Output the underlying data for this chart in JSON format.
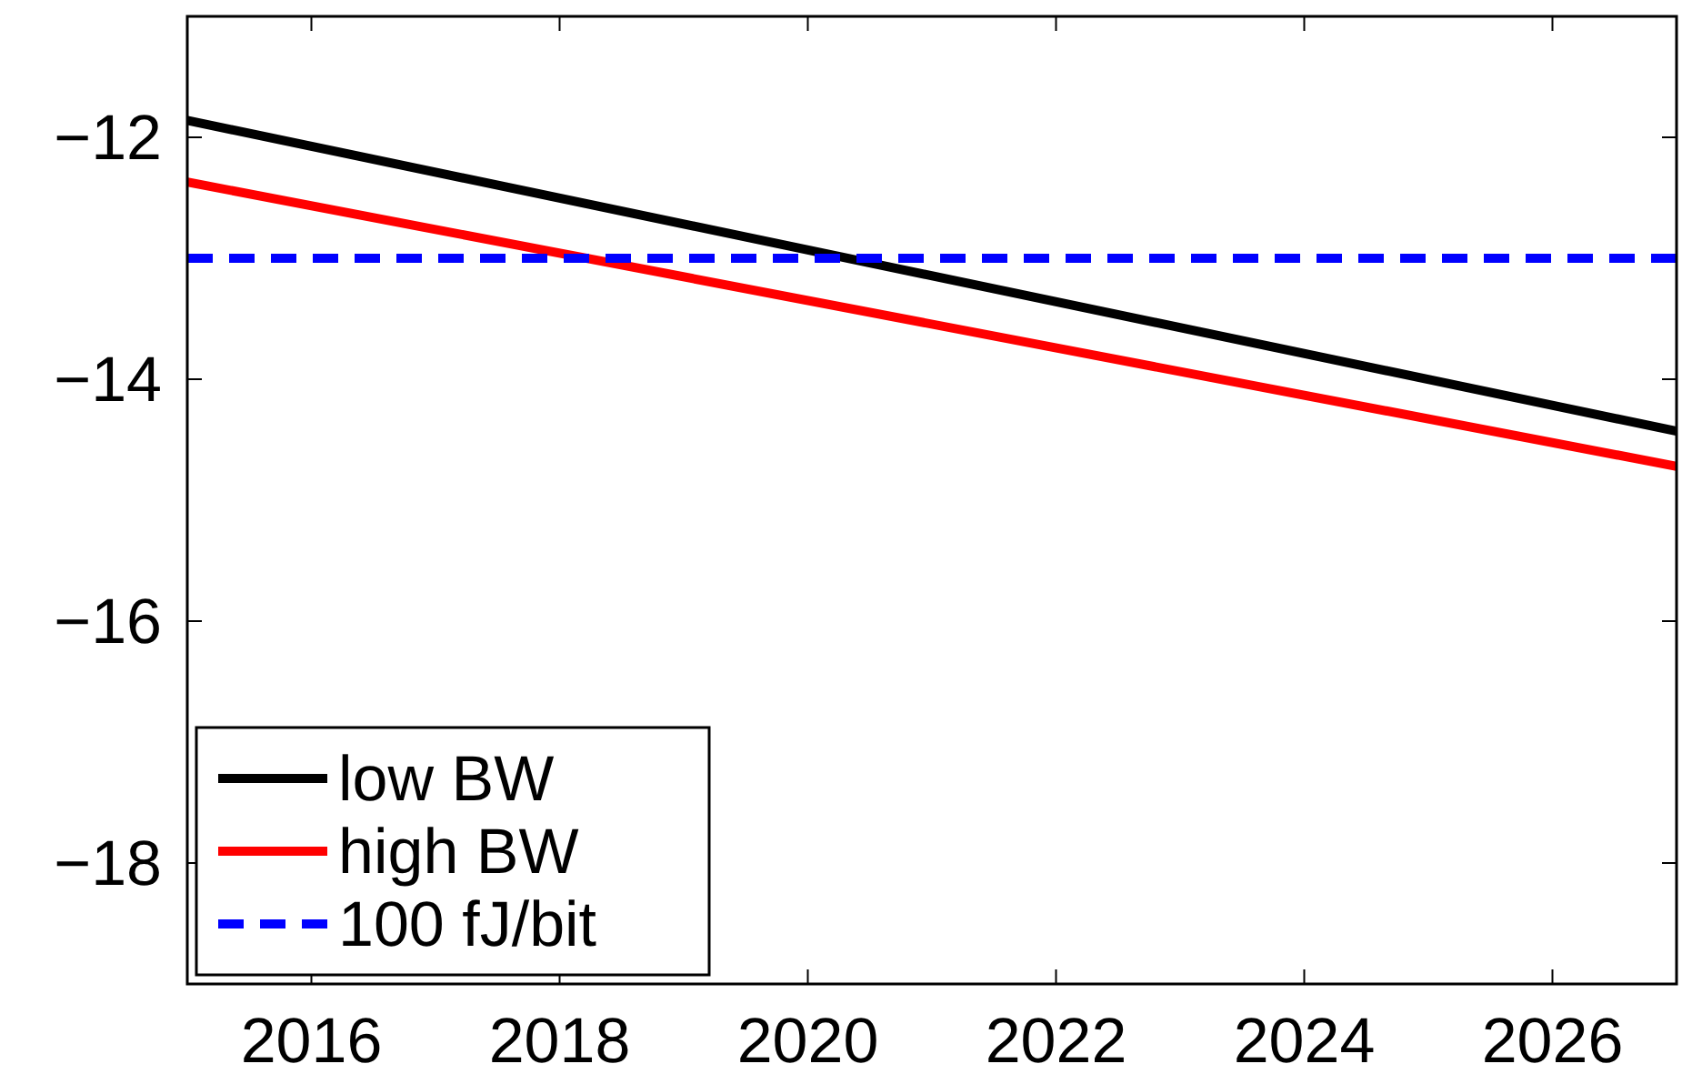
{
  "chart_data": {
    "type": "line",
    "x": [
      2015,
      2027
    ],
    "xlim": [
      2015,
      2027
    ],
    "xticks": [
      2016,
      2018,
      2020,
      2022,
      2024,
      2026
    ],
    "ylim": [
      -19,
      -11
    ],
    "yticks": [
      {
        "value": -18,
        "label": "−18"
      },
      {
        "value": -16,
        "label": "−16"
      },
      {
        "value": -14,
        "label": "−14"
      },
      {
        "value": -12,
        "label": "−12"
      }
    ],
    "series": [
      {
        "name": "low BW",
        "color": "#000000",
        "values": [
          -11.86,
          -14.43
        ],
        "line_style": "solid"
      },
      {
        "name": "high BW",
        "color": "#ff0000",
        "values": [
          -12.37,
          -14.72
        ],
        "line_style": "solid"
      },
      {
        "name": "100 fJ/bit",
        "color": "#0000ff",
        "values": [
          -13,
          -13
        ],
        "line_style": "dashed"
      }
    ],
    "legend": "bottom left",
    "grid": false,
    "marker": "none"
  }
}
